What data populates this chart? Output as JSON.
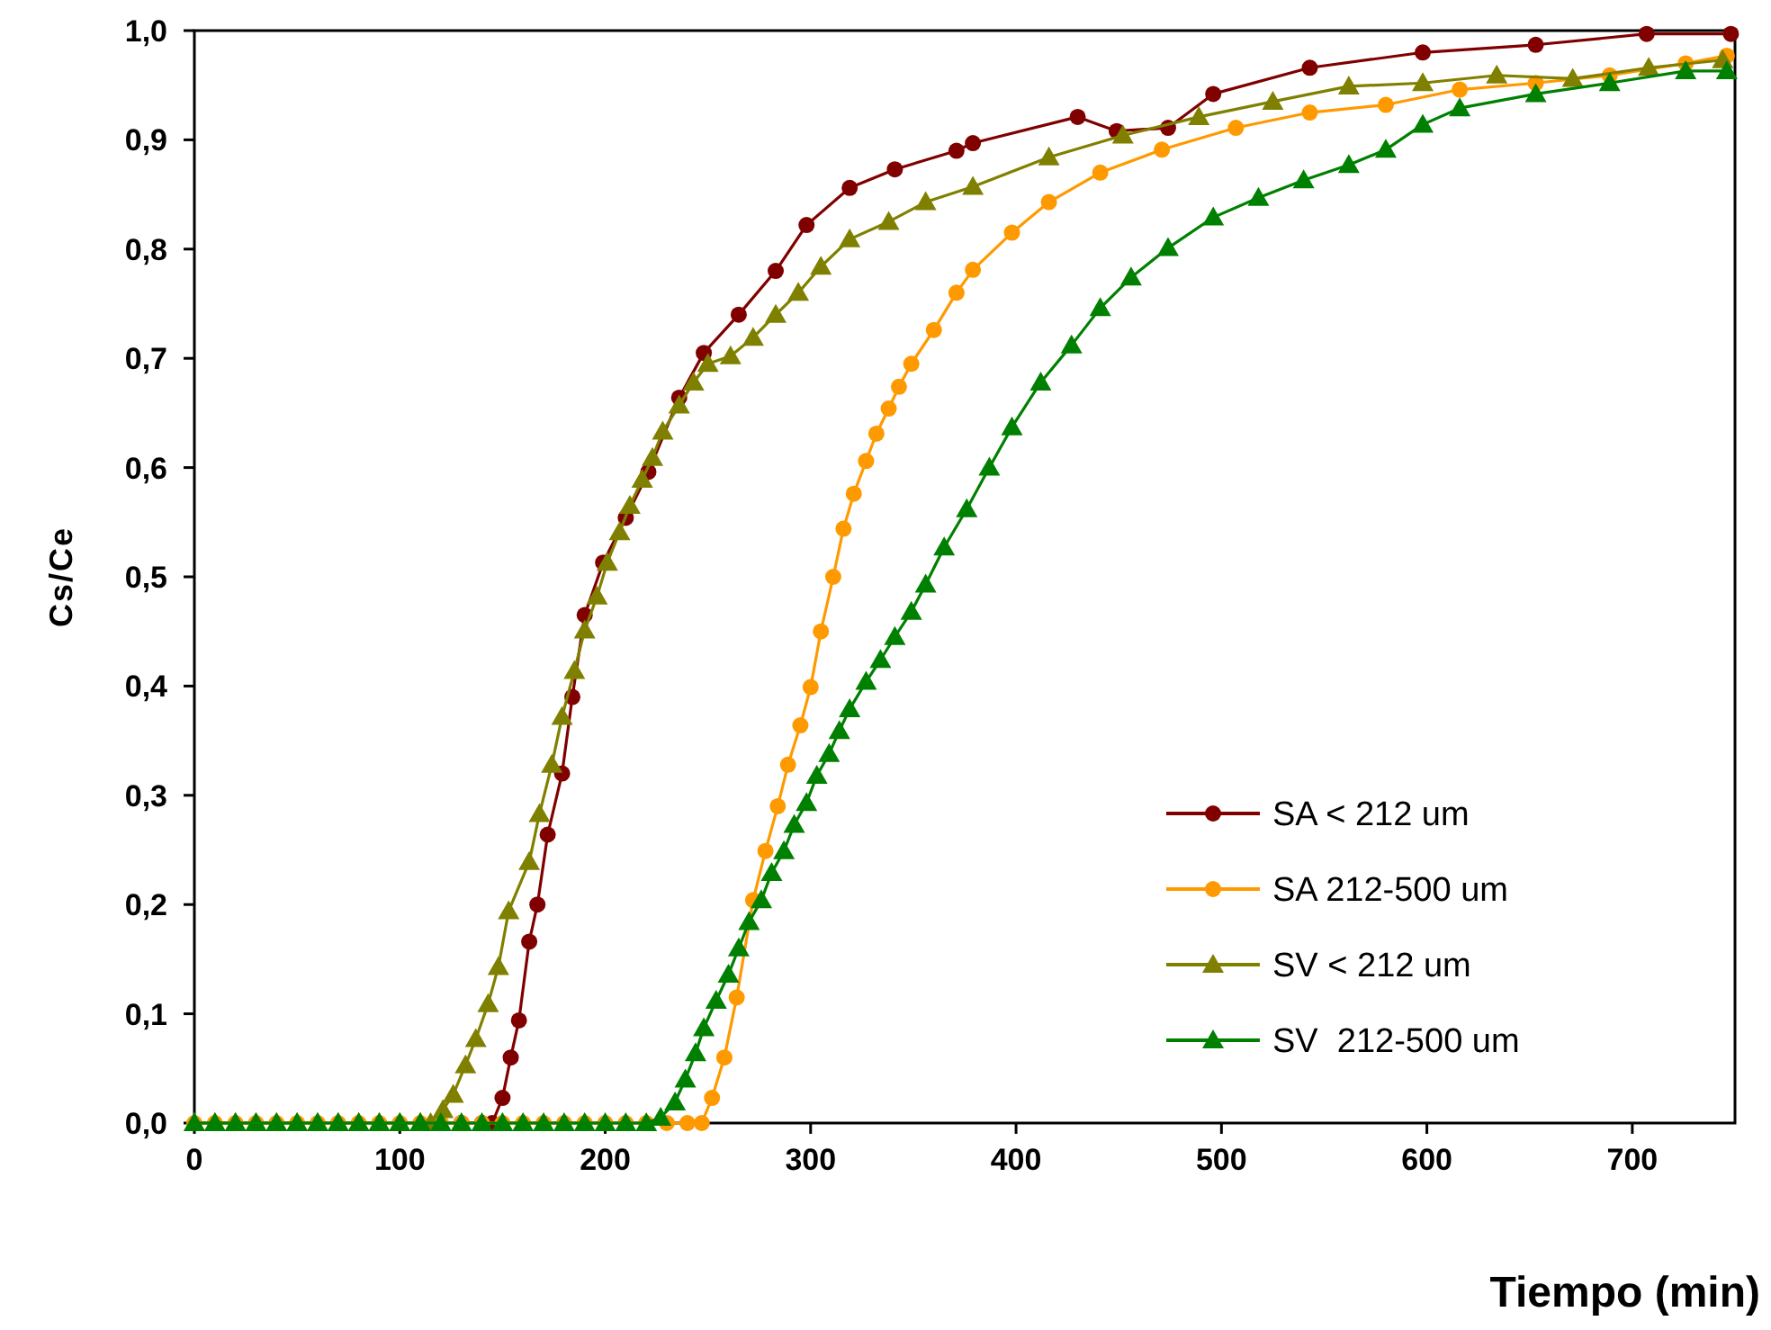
{
  "chart_data": {
    "type": "line",
    "xlabel": "Tiempo (min)",
    "ylabel": "Cs/Ce",
    "xlim": [
      0,
      750
    ],
    "xticks": [
      0,
      100,
      200,
      300,
      400,
      500,
      600,
      700
    ],
    "ylim": [
      0,
      1
    ],
    "yticks": [
      {
        "value": 0,
        "label": "0,0"
      },
      {
        "value": 0.1,
        "label": "0,1"
      },
      {
        "value": 0.2,
        "label": "0,2"
      },
      {
        "value": 0.3,
        "label": "0,3"
      },
      {
        "value": 0.4,
        "label": "0,4"
      },
      {
        "value": 0.5,
        "label": "0,5"
      },
      {
        "value": 0.6,
        "label": "0,6"
      },
      {
        "value": 0.7,
        "label": "0,7"
      },
      {
        "value": 0.8,
        "label": "0,8"
      },
      {
        "value": 0.9,
        "label": "0,9"
      },
      {
        "value": 1,
        "label": "1,0"
      }
    ],
    "grid": false,
    "legend": "bottom right",
    "line_style": "solid",
    "series": [
      {
        "name": "SA < 212 um",
        "color": "#800000",
        "marker": "circle",
        "x": [
          130,
          140,
          145,
          150,
          154,
          158,
          163,
          167,
          172,
          179,
          184,
          190,
          199,
          210,
          221,
          236,
          248,
          265,
          283,
          298,
          319,
          341,
          371,
          379,
          430,
          449,
          474,
          496,
          543,
          598,
          653,
          707,
          748
        ],
        "values": [
          0,
          0,
          0,
          0.023,
          0.06,
          0.094,
          0.166,
          0.2,
          0.264,
          0.32,
          0.39,
          0.465,
          0.513,
          0.554,
          0.596,
          0.664,
          0.705,
          0.74,
          0.78,
          0.822,
          0.856,
          0.873,
          0.89,
          0.897,
          0.921,
          0.908,
          0.911,
          0.942,
          0.966,
          0.98,
          0.987,
          0.997,
          0.997
        ]
      },
      {
        "name": "SA 212-500 um",
        "color": "#ff9900",
        "marker": "circle",
        "x": [
          0,
          10,
          20,
          30,
          40,
          50,
          60,
          70,
          80,
          90,
          100,
          110,
          120,
          130,
          140,
          150,
          160,
          170,
          180,
          190,
          200,
          210,
          220,
          230,
          240,
          247,
          252,
          258,
          264,
          272,
          278,
          284,
          289,
          295,
          300,
          305,
          311,
          316,
          321,
          327,
          332,
          338,
          343,
          349,
          360,
          371,
          379,
          398,
          416,
          441,
          471,
          507,
          543,
          580,
          616,
          653,
          689,
          726,
          746
        ],
        "values": [
          0,
          0,
          0,
          0,
          0,
          0,
          0,
          0,
          0,
          0,
          0,
          0,
          0,
          0,
          0,
          0,
          0,
          0,
          0,
          0,
          0,
          0,
          0,
          0,
          0,
          0,
          0.023,
          0.06,
          0.115,
          0.204,
          0.249,
          0.29,
          0.328,
          0.364,
          0.399,
          0.45,
          0.5,
          0.544,
          0.576,
          0.606,
          0.631,
          0.654,
          0.674,
          0.695,
          0.726,
          0.76,
          0.781,
          0.815,
          0.843,
          0.87,
          0.891,
          0.911,
          0.925,
          0.932,
          0.946,
          0.952,
          0.959,
          0.97,
          0.977
        ]
      },
      {
        "name": "SV < 212 um",
        "color": "#808000",
        "marker": "triangle",
        "x": [
          0,
          10,
          20,
          30,
          40,
          50,
          60,
          70,
          80,
          90,
          100,
          110,
          115,
          121,
          126,
          132,
          137,
          143,
          148,
          153,
          163,
          168,
          174,
          179,
          185,
          190,
          196,
          201,
          207,
          212,
          218,
          223,
          228,
          236,
          243,
          250,
          261,
          272,
          283,
          294,
          305,
          319,
          338,
          356,
          379,
          416,
          452,
          489,
          525,
          562,
          598,
          634,
          671,
          708,
          744
        ],
        "values": [
          0,
          0,
          0,
          0,
          0,
          0,
          0,
          0,
          0,
          0,
          0,
          0,
          0,
          0.012,
          0.026,
          0.053,
          0.077,
          0.109,
          0.143,
          0.194,
          0.239,
          0.283,
          0.328,
          0.372,
          0.414,
          0.451,
          0.482,
          0.513,
          0.541,
          0.565,
          0.589,
          0.609,
          0.633,
          0.657,
          0.678,
          0.695,
          0.702,
          0.719,
          0.74,
          0.76,
          0.784,
          0.809,
          0.825,
          0.843,
          0.857,
          0.884,
          0.904,
          0.921,
          0.935,
          0.949,
          0.952,
          0.959,
          0.956,
          0.966,
          0.973
        ]
      },
      {
        "name": "SV  212-500 um",
        "color": "#008000",
        "marker": "triangle",
        "x": [
          0,
          10,
          20,
          30,
          40,
          50,
          60,
          70,
          80,
          90,
          100,
          110,
          120,
          130,
          140,
          150,
          160,
          170,
          180,
          190,
          200,
          210,
          220,
          227,
          234,
          239,
          244,
          248,
          254,
          260,
          265,
          270,
          276,
          281,
          287,
          292,
          298,
          303,
          309,
          314,
          319,
          327,
          334,
          341,
          349,
          356,
          365,
          376,
          387,
          398,
          412,
          427,
          441,
          456,
          474,
          496,
          518,
          540,
          562,
          580,
          598,
          616,
          653,
          689,
          726,
          746
        ],
        "values": [
          0,
          0,
          0,
          0,
          0,
          0,
          0,
          0,
          0,
          0,
          0,
          0,
          0,
          0,
          0,
          0,
          0,
          0,
          0,
          0,
          0,
          0,
          0,
          0.005,
          0.019,
          0.04,
          0.064,
          0.087,
          0.112,
          0.136,
          0.16,
          0.184,
          0.204,
          0.229,
          0.249,
          0.273,
          0.293,
          0.318,
          0.338,
          0.359,
          0.379,
          0.404,
          0.424,
          0.445,
          0.468,
          0.493,
          0.527,
          0.562,
          0.6,
          0.637,
          0.678,
          0.712,
          0.746,
          0.774,
          0.801,
          0.829,
          0.847,
          0.863,
          0.877,
          0.891,
          0.914,
          0.929,
          0.942,
          0.952,
          0.963,
          0.963
        ]
      }
    ]
  }
}
